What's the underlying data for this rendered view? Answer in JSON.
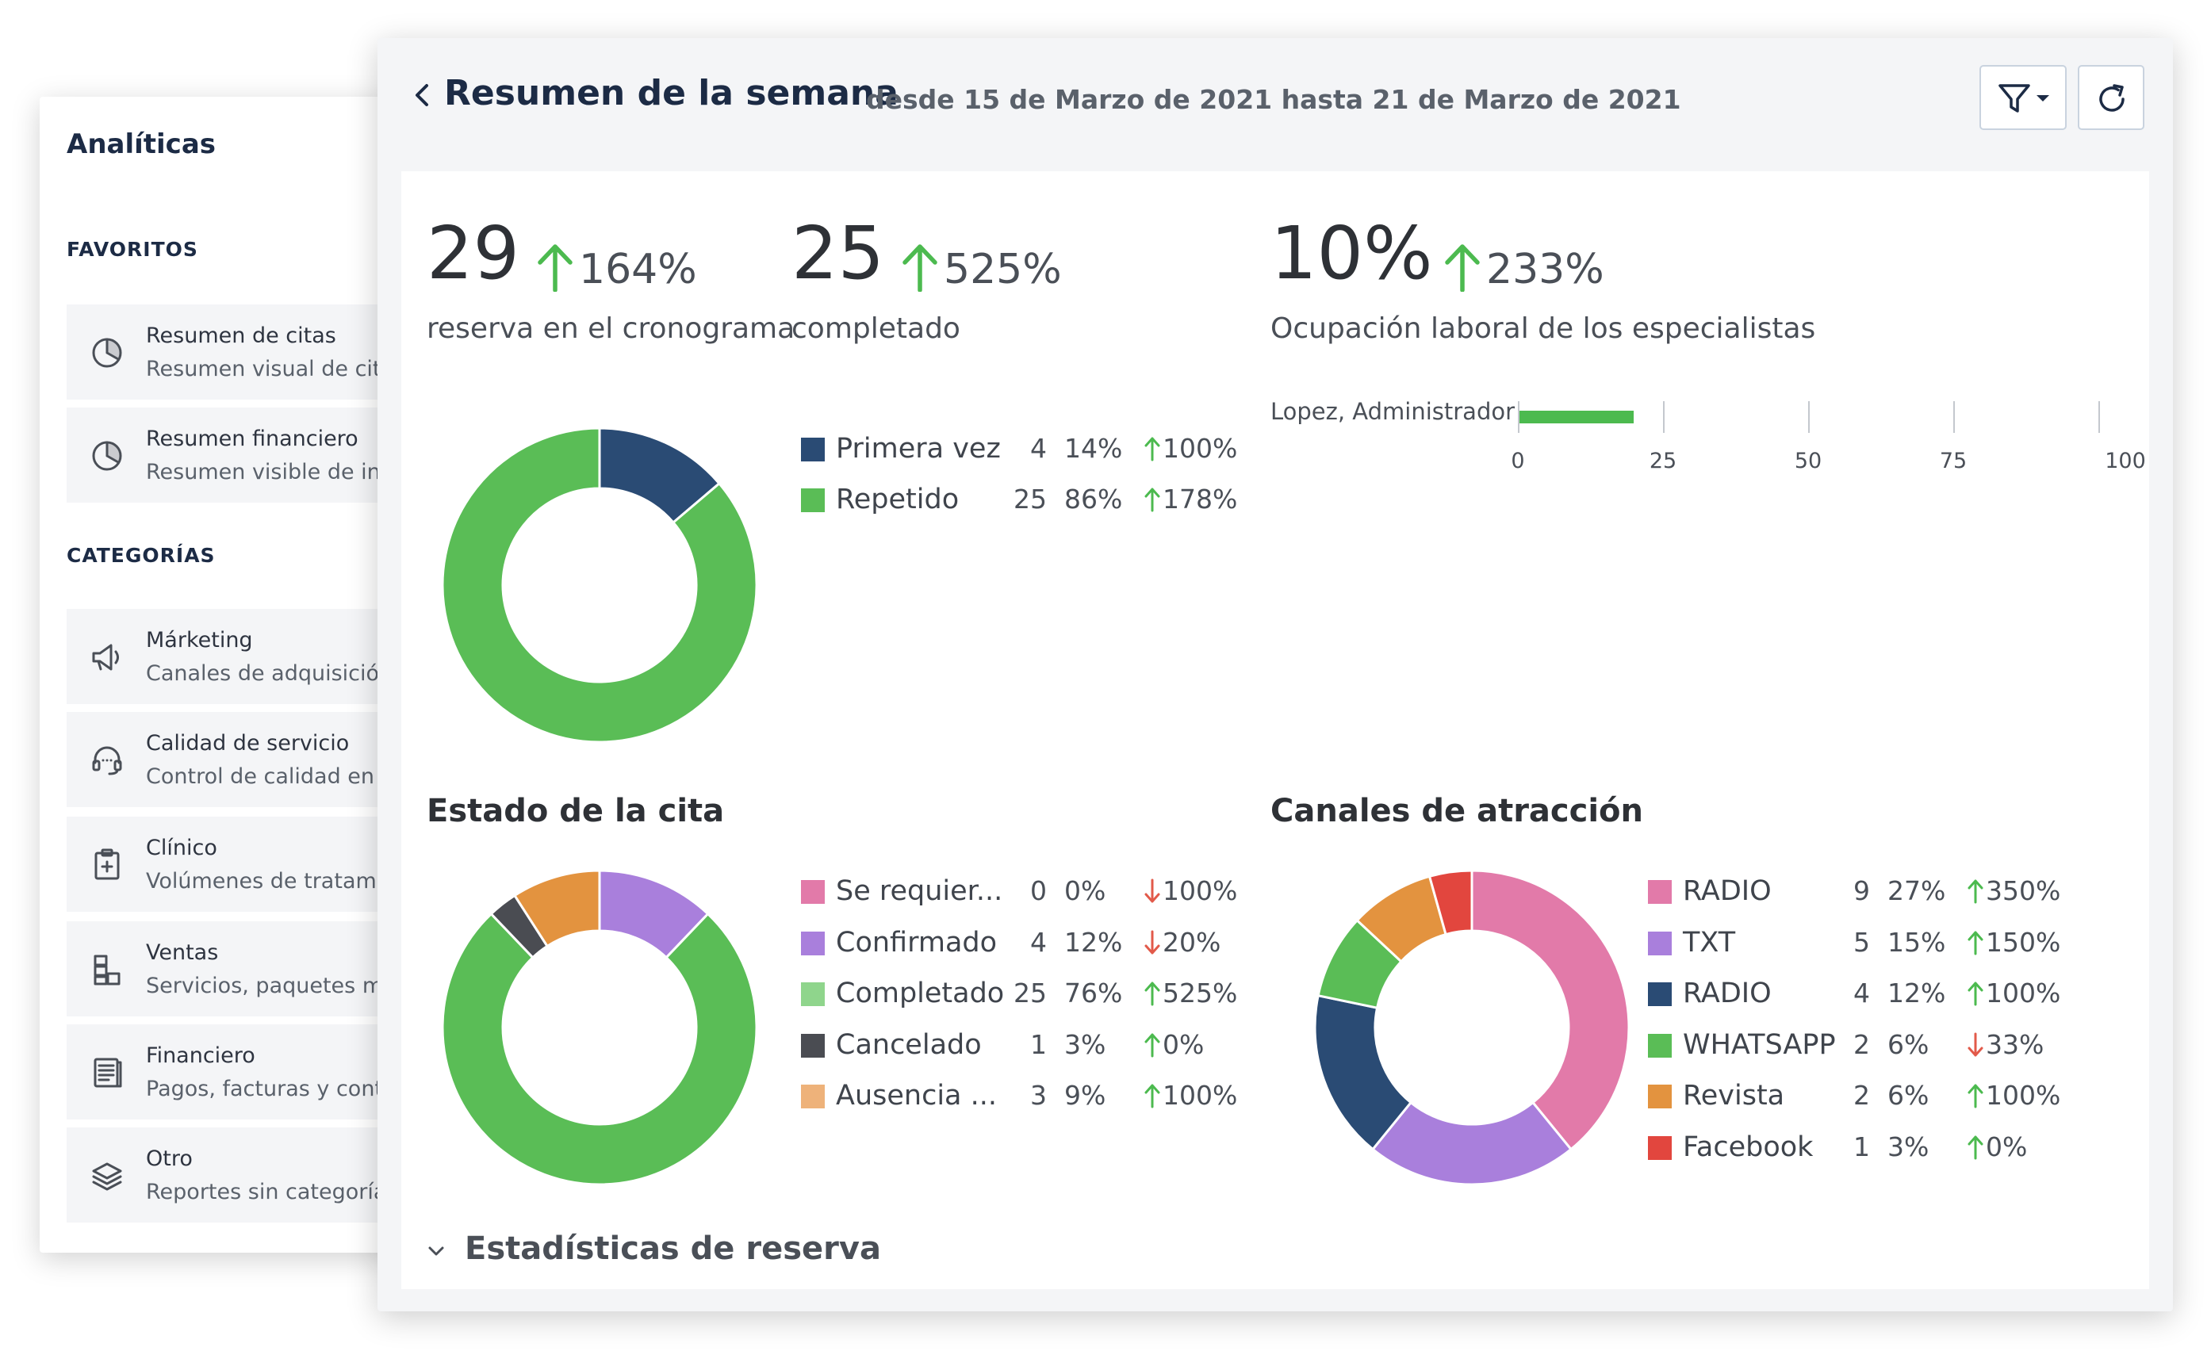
{
  "sidebar": {
    "title": "Analíticas",
    "favorites_label": "FAVORITOS",
    "categories_label": "CATEGORÍAS",
    "favorites": [
      {
        "title": "Resumen de citas",
        "subtitle": "Resumen visual de citas",
        "icon": "pie-chart-icon"
      },
      {
        "title": "Resumen financiero",
        "subtitle": "Resumen visible de ind",
        "icon": "pie-chart-icon"
      }
    ],
    "categories": [
      {
        "title": "Márketing",
        "subtitle": "Canales de adquisición",
        "icon": "megaphone-icon"
      },
      {
        "title": "Calidad de servicio",
        "subtitle": "Control de calidad en l",
        "icon": "headset-icon"
      },
      {
        "title": "Clínico",
        "subtitle": "Volúmenes de tratamie",
        "icon": "clipboard-icon"
      },
      {
        "title": "Ventas",
        "subtitle": "Servicios, paquetes mé",
        "icon": "boxes-icon"
      },
      {
        "title": "Financiero",
        "subtitle": "Pagos, facturas y conta",
        "icon": "ledger-icon"
      },
      {
        "title": "Otro",
        "subtitle": "Reportes sin categoría",
        "icon": "layers-icon"
      }
    ]
  },
  "header": {
    "title": "Resumen de la semana",
    "subtitle": "desde 15 de Marzo de 2021 hasta 21 de Marzo de 2021",
    "back_icon": "chevron-left-icon",
    "filter_icon": "filter-icon",
    "refresh_icon": "refresh-icon"
  },
  "kpis": [
    {
      "value": "29",
      "change": "164%",
      "label": "reserva en el cronograma",
      "direction": "up"
    },
    {
      "value": "25",
      "change": "525%",
      "label": "completado",
      "direction": "up"
    },
    {
      "value": "10%",
      "change": "233%",
      "label": "Ocupación laboral de los especialistas",
      "direction": "up"
    }
  ],
  "colors": {
    "up": "#4cba4f",
    "down": "#e25a4a",
    "primary_text": "#1c2b45"
  },
  "occupancy": {
    "rows": [
      {
        "name": "Lopez, Administrador",
        "value": 20
      }
    ],
    "ticks": [
      "0",
      "25",
      "50",
      "75",
      "100"
    ],
    "max": 100,
    "bar_color": "#4cba4f"
  },
  "sections": {
    "status_title": "Estado de la cita",
    "channels_title": "Canales de atracción",
    "stats_title": "Estadísticas de reserva"
  },
  "chart_data": [
    {
      "type": "pie",
      "series": [
        {
          "name": "Primera vez",
          "count": "4",
          "percent": "14%",
          "change": "100%",
          "direction": "up",
          "value": 4,
          "color": "#2a4b74"
        },
        {
          "name": "Repetido",
          "count": "25",
          "percent": "86%",
          "change": "178%",
          "direction": "up",
          "value": 25,
          "color": "#5abd56"
        }
      ]
    },
    {
      "type": "pie",
      "title": "Estado de la cita",
      "series": [
        {
          "name": "Se requier...",
          "count": "0",
          "percent": "0%",
          "change": "100%",
          "direction": "down",
          "value": 0,
          "color": "#e27aa9"
        },
        {
          "name": "Confirmado",
          "count": "4",
          "percent": "12%",
          "change": "20%",
          "direction": "down",
          "value": 4,
          "color": "#a97fdc"
        },
        {
          "name": "Completado",
          "count": "25",
          "percent": "76%",
          "change": "525%",
          "direction": "up",
          "value": 25,
          "color": "#5abd56",
          "swatch": "#8fd58c"
        },
        {
          "name": "Cancelado",
          "count": "1",
          "percent": "3%",
          "change": "0%",
          "direction": "up",
          "value": 1,
          "color": "#4a4c52"
        },
        {
          "name": "Ausencia ...",
          "count": "3",
          "percent": "9%",
          "change": "100%",
          "direction": "up",
          "value": 3,
          "color": "#e3933f",
          "swatch": "#eeb27a"
        }
      ]
    },
    {
      "type": "pie",
      "title": "Canales de atracción",
      "series": [
        {
          "name": "RADIO",
          "count": "9",
          "percent": "27%",
          "change": "350%",
          "direction": "up",
          "value": 9,
          "color": "#e27aa9"
        },
        {
          "name": "TXT",
          "count": "5",
          "percent": "15%",
          "change": "150%",
          "direction": "up",
          "value": 5,
          "color": "#a97fdc"
        },
        {
          "name": "RADIO",
          "count": "4",
          "percent": "12%",
          "change": "100%",
          "direction": "up",
          "value": 4,
          "color": "#2a4b74"
        },
        {
          "name": "WHATSAPP",
          "count": "2",
          "percent": "6%",
          "change": "33%",
          "direction": "down",
          "value": 2,
          "color": "#5abd56"
        },
        {
          "name": "Revista",
          "count": "2",
          "percent": "6%",
          "change": "100%",
          "direction": "up",
          "value": 2,
          "color": "#e3933f"
        },
        {
          "name": "Facebook",
          "count": "1",
          "percent": "3%",
          "change": "0%",
          "direction": "up",
          "value": 1,
          "color": "#e2463e"
        }
      ]
    }
  ]
}
